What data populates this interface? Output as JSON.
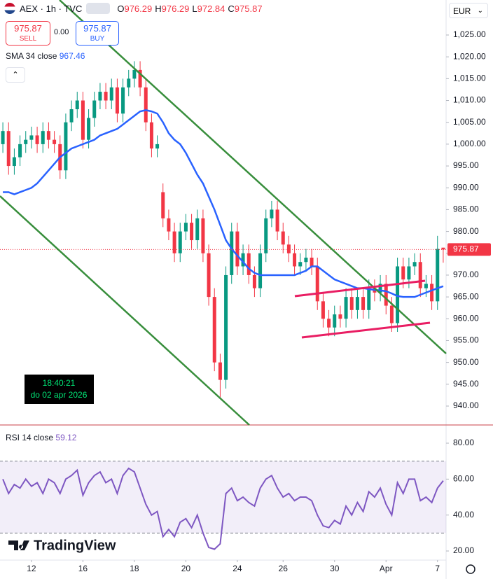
{
  "header": {
    "symbol": "AEX · 1h · TVC",
    "ohlc": [
      {
        "label": "O",
        "value": 976.29
      },
      {
        "label": "H",
        "value": 976.29
      },
      {
        "label": "L",
        "value": 972.84
      },
      {
        "label": "C",
        "value": 975.87
      }
    ],
    "sell": {
      "price": "975.87",
      "label": "SELL"
    },
    "spread": "0.00",
    "buy": {
      "price": "975.87",
      "label": "BUY"
    },
    "currency": "EUR"
  },
  "tooltip": {
    "time": "18:40:21",
    "date": "do 02 apr 2026"
  },
  "logo": "TradingView",
  "chart_data": [
    {
      "type": "candlestick",
      "indicator": {
        "name": "SMA 34 close",
        "value": 967.46
      },
      "up_color": "#089981",
      "down_color": "#f23645",
      "sma_color": "#2962ff",
      "xlim": [
        -0.5,
        77.5
      ],
      "ylim": [
        935.67,
        1033.02
      ],
      "xticks": [
        {
          "value": 5,
          "label": "12"
        },
        {
          "value": 14,
          "label": "16"
        },
        {
          "value": 23,
          "label": "18"
        },
        {
          "value": 32,
          "label": "20"
        },
        {
          "value": 41,
          "label": "24"
        },
        {
          "value": 49,
          "label": "26"
        },
        {
          "value": 58,
          "label": "30"
        },
        {
          "value": 67,
          "label": "Apr"
        },
        {
          "value": 76,
          "label": "7"
        }
      ],
      "yticks": [
        {
          "value": 1025,
          "label": "1,025.00"
        },
        {
          "value": 1020,
          "label": "1,020.00"
        },
        {
          "value": 1015,
          "label": "1,015.00"
        },
        {
          "value": 1010,
          "label": "1,010.00"
        },
        {
          "value": 1005,
          "label": "1,005.00"
        },
        {
          "value": 1000,
          "label": "1,000.00"
        },
        {
          "value": 995,
          "label": "995.00"
        },
        {
          "value": 990,
          "label": "990.00"
        },
        {
          "value": 985,
          "label": "985.00"
        },
        {
          "value": 980,
          "label": "980.00"
        },
        {
          "value": 975,
          "label": "975.00"
        },
        {
          "value": 970,
          "label": "970.00"
        },
        {
          "value": 965,
          "label": "965.00"
        },
        {
          "value": 960,
          "label": "960.00"
        },
        {
          "value": 955,
          "label": "955.00"
        },
        {
          "value": 950,
          "label": "950.00"
        },
        {
          "value": 945,
          "label": "945.00"
        },
        {
          "value": 940,
          "label": "940.00"
        }
      ],
      "open": [
        1000,
        1003,
        995,
        997,
        1000,
        1001,
        1002,
        1000,
        1003,
        1001,
        1000,
        994,
        1005,
        1008,
        1010,
        1001,
        1006,
        1010,
        1012,
        1010,
        1013,
        1007,
        1013,
        1015,
        1017,
        1013,
        1005,
        999,
        989,
        983,
        980,
        975,
        980,
        982,
        978,
        983,
        975,
        965,
        950,
        946,
        970,
        980,
        972,
        975,
        970,
        967,
        975,
        983,
        985,
        980,
        977,
        975,
        972,
        973,
        974,
        972,
        964,
        960,
        958,
        961,
        960,
        965,
        962,
        965,
        962,
        967,
        966,
        968,
        963,
        959,
        972,
        969,
        972,
        973,
        967,
        968,
        964,
        976.29
      ],
      "high": [
        1005,
        1005,
        999,
        1002,
        1003,
        1004,
        1004,
        1005,
        1005,
        1003,
        1002,
        1007,
        1010,
        1012,
        1012,
        1008,
        1012,
        1014,
        1014,
        1015,
        1015,
        1015,
        1017,
        1019,
        1019,
        1015,
        1007,
        1002,
        991,
        985,
        982,
        982,
        984,
        984,
        985,
        985,
        977,
        967,
        952,
        972,
        982,
        982,
        977,
        977,
        972,
        977,
        985,
        987,
        987,
        982,
        979,
        977,
        975,
        976,
        976,
        974,
        966,
        962,
        963,
        963,
        967,
        967,
        967,
        967,
        969,
        969,
        970,
        970,
        965,
        974,
        974,
        974,
        975,
        975,
        970,
        970,
        979,
        976.29
      ],
      "low": [
        998,
        993,
        993,
        995,
        998,
        999,
        998,
        998,
        999,
        998,
        992,
        992,
        1003,
        1006,
        999,
        999,
        1004,
        1008,
        1008,
        1008,
        1005,
        1005,
        1011,
        1013,
        1011,
        1003,
        997,
        997,
        981,
        978,
        973,
        973,
        978,
        976,
        976,
        973,
        963,
        948,
        942,
        944,
        968,
        970,
        970,
        968,
        965,
        965,
        973,
        981,
        978,
        975,
        973,
        970,
        970,
        971,
        970,
        962,
        958,
        956,
        956,
        958,
        958,
        960,
        960,
        960,
        960,
        964,
        964,
        961,
        957,
        957,
        967,
        967,
        970,
        965,
        965,
        962,
        962,
        972.84
      ],
      "close": [
        1003,
        995,
        997,
        1000,
        1001,
        1002,
        1000,
        1003,
        1001,
        1000,
        994,
        1005,
        1008,
        1010,
        1001,
        1006,
        1010,
        1012,
        1010,
        1013,
        1007,
        1013,
        1015,
        1017,
        1013,
        1005,
        999,
        1000,
        983,
        980,
        975,
        980,
        982,
        978,
        983,
        975,
        965,
        950,
        946,
        970,
        980,
        972,
        975,
        970,
        967,
        975,
        983,
        985,
        980,
        977,
        975,
        972,
        973,
        974,
        972,
        964,
        960,
        958,
        961,
        960,
        965,
        962,
        965,
        962,
        967,
        966,
        968,
        963,
        959,
        972,
        969,
        972,
        973,
        967,
        968,
        964,
        976,
        975.87
      ],
      "sma": [
        989,
        989,
        988.5,
        989,
        989.5,
        990,
        991,
        992.5,
        994,
        995.5,
        997,
        998,
        999,
        999.5,
        1000,
        1000.5,
        1001,
        1002,
        1002.5,
        1003,
        1003.5,
        1004.5,
        1005.5,
        1006.5,
        1007.5,
        1007.8,
        1007.5,
        1007,
        1005,
        1002.5,
        1001,
        1000,
        998,
        995.5,
        993,
        991,
        988,
        985,
        981.5,
        978,
        976,
        974.5,
        973,
        971.5,
        970.5,
        970,
        970,
        970,
        970,
        970,
        970,
        970,
        970.5,
        971,
        972,
        972,
        971,
        970,
        969,
        968.5,
        968,
        967.5,
        967,
        967,
        966.8,
        966.6,
        966.5,
        966.3,
        965.8,
        965.2,
        965,
        965,
        965,
        965.5,
        966,
        966.5,
        967,
        967.46
      ]
    },
    {
      "type": "line",
      "indicator": {
        "name": "RSI 14 close",
        "value": 59.12
      },
      "color": "#7e57c2",
      "band": [
        30,
        70
      ],
      "band_color": "#7e57c2",
      "xlim": [
        -0.5,
        77.5
      ],
      "ylim": [
        14.94,
        90.13
      ],
      "yticks": [
        {
          "value": 80,
          "label": "80.00"
        },
        {
          "value": 60,
          "label": "60.00"
        },
        {
          "value": 40,
          "label": "40.00"
        },
        {
          "value": 20,
          "label": "20.00"
        }
      ],
      "values": [
        60,
        52,
        57,
        55,
        60,
        56,
        58,
        52,
        60,
        58,
        52,
        60,
        62,
        65,
        51,
        58,
        62,
        64,
        58,
        60,
        52,
        62,
        66,
        64,
        55,
        46,
        40,
        42,
        28,
        32,
        28,
        36,
        38,
        33,
        40,
        30,
        22,
        21,
        24,
        52,
        55,
        48,
        50,
        47,
        45,
        55,
        60,
        62,
        55,
        50,
        52,
        48,
        50,
        50,
        48,
        40,
        34,
        33,
        37,
        35,
        45,
        40,
        47,
        42,
        53,
        50,
        55,
        46,
        40,
        58,
        52,
        60,
        60,
        48,
        50,
        47,
        55,
        59.12
      ]
    }
  ]
}
